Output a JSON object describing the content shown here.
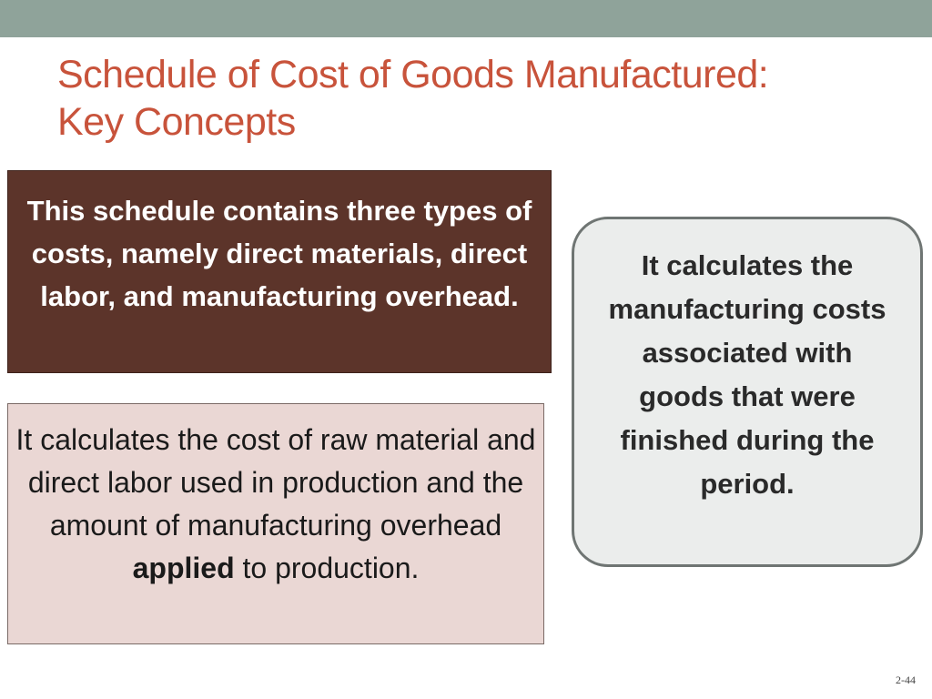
{
  "slide": {
    "title_line1": "Schedule of Cost of Goods Manufactured:",
    "title_line2": "Key Concepts",
    "box_dark_text": "This schedule contains three types of costs, namely direct materials, direct labor, and manufacturing overhead.",
    "box_pink_text_before": "It calculates the cost of raw material and direct labor used in production and the amount of manufacturing overhead ",
    "box_pink_bold": "applied",
    "box_pink_text_after": " to production.",
    "box_grey_text": "It calculates the manufacturing costs associated with goods that were finished during the period.",
    "page_number": "2-44"
  },
  "colors": {
    "top_bar": "#8fa39a",
    "title": "#c8533b",
    "box_dark_bg": "#5c342a",
    "box_pink_bg": "#ead7d4",
    "box_grey_bg": "#ebedec"
  }
}
